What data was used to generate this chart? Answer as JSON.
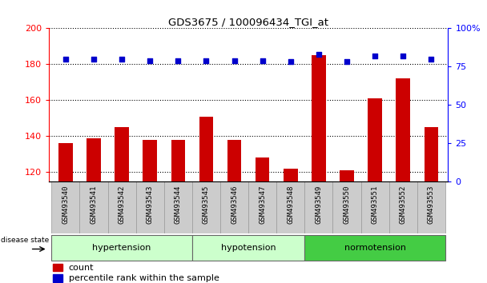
{
  "title": "GDS3675 / 100096434_TGI_at",
  "samples": [
    "GSM493540",
    "GSM493541",
    "GSM493542",
    "GSM493543",
    "GSM493544",
    "GSM493545",
    "GSM493546",
    "GSM493547",
    "GSM493548",
    "GSM493549",
    "GSM493550",
    "GSM493551",
    "GSM493552",
    "GSM493553"
  ],
  "counts": [
    136,
    139,
    145,
    138,
    138,
    151,
    138,
    128,
    122,
    185,
    121,
    161,
    172,
    145
  ],
  "percentiles": [
    80,
    80,
    80,
    79,
    79,
    79,
    79,
    79,
    78,
    83,
    78,
    82,
    82,
    80
  ],
  "ylim_left": [
    115,
    200
  ],
  "ylim_right": [
    0,
    100
  ],
  "yticks_left": [
    120,
    140,
    160,
    180,
    200
  ],
  "yticks_right": [
    0,
    25,
    50,
    75,
    100
  ],
  "groups": [
    {
      "label": "hypertension",
      "start": 0,
      "end": 5
    },
    {
      "label": "hypotension",
      "start": 5,
      "end": 9
    },
    {
      "label": "normotension",
      "start": 9,
      "end": 14
    }
  ],
  "group_colors": [
    "#ccffcc",
    "#ccffcc",
    "#44cc44"
  ],
  "bar_color": "#cc0000",
  "dot_color": "#0000cc",
  "bg_color": "#ffffff",
  "label_bg": "#cccccc",
  "disease_state_label": "disease state",
  "legend_count": "count",
  "legend_percentile": "percentile rank within the sample",
  "top_right_label": "100%"
}
